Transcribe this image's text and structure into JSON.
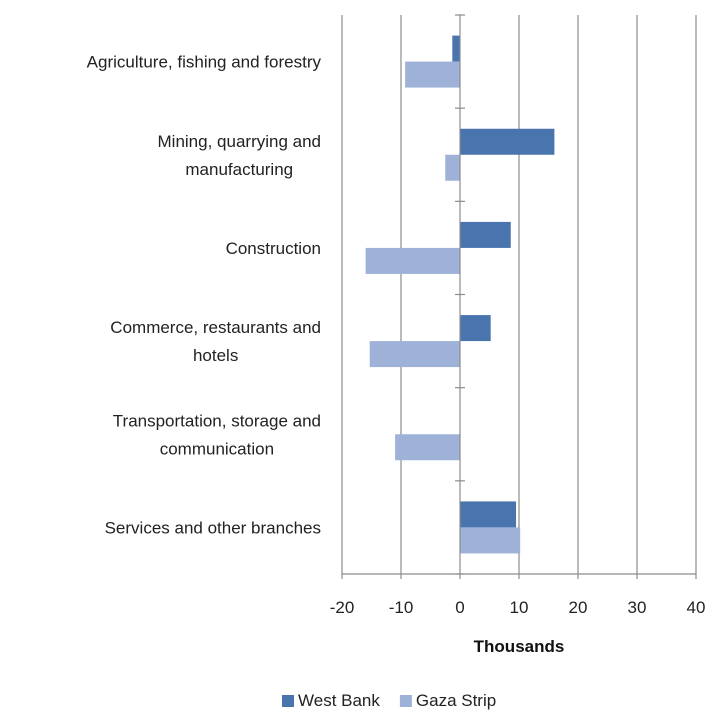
{
  "chart_data": {
    "type": "bar",
    "orientation": "horizontal",
    "categories": [
      [
        "Agriculture, fishing and forestry"
      ],
      [
        "Mining, quarrying and",
        "manufacturing"
      ],
      [
        "Construction"
      ],
      [
        "Commerce, restaurants and",
        "hotels"
      ],
      [
        "Transportation, storage and",
        "communication"
      ],
      [
        "Services and other branches"
      ]
    ],
    "series": [
      {
        "name": "West Bank",
        "color": "#4a74ad",
        "values": [
          -1.3,
          16.0,
          8.6,
          5.2,
          0,
          9.5
        ]
      },
      {
        "name": "Gaza Strip",
        "color": "#9eb2d8",
        "values": [
          -9.3,
          -2.5,
          -16.0,
          -15.3,
          -11.0,
          10.2
        ]
      }
    ],
    "xlim": [
      -20,
      40
    ],
    "xticks": [
      -20,
      -10,
      0,
      10,
      20,
      30,
      40
    ],
    "xlabel": "Thousands",
    "grid": "vertical",
    "legend": "bottom"
  }
}
